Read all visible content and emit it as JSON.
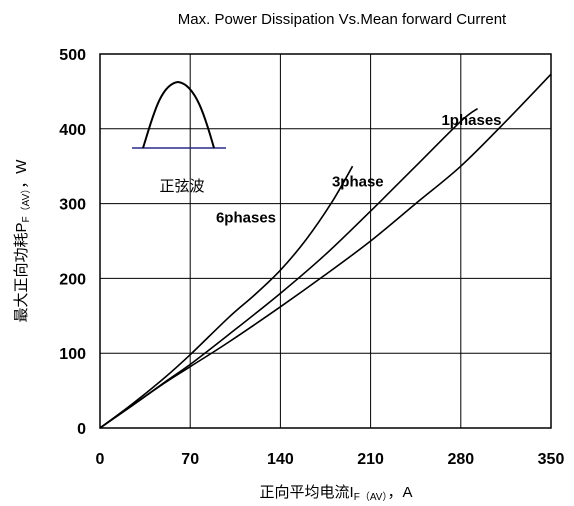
{
  "chart_data": {
    "type": "line",
    "title": "Max. Power Dissipation Vs.Mean forward Current",
    "xlabel": "正向平均电流I",
    "xlabel_sub": "F（AV）",
    "xlabel_suffix": "，A",
    "ylabel": "最大正向功耗P",
    "ylabel_sub": "F（AV）",
    "ylabel_suffix": "，W",
    "xlim": [
      0,
      350
    ],
    "ylim": [
      0,
      500
    ],
    "xticks": [
      0,
      70,
      140,
      210,
      280,
      350
    ],
    "yticks": [
      0,
      100,
      200,
      300,
      400,
      500
    ],
    "grid": true,
    "series": [
      {
        "name": "1phases",
        "x": [
          0,
          25,
          50,
          70,
          100,
          140,
          175,
          210,
          245,
          280,
          315,
          350
        ],
        "y": [
          0,
          30,
          60,
          82,
          115,
          162,
          205,
          250,
          300,
          350,
          410,
          473
        ]
      },
      {
        "name": "3phase",
        "x": [
          0,
          25,
          50,
          70,
          100,
          140,
          175,
          210,
          245,
          280,
          293
        ],
        "y": [
          0,
          30,
          61,
          85,
          125,
          180,
          232,
          290,
          350,
          410,
          427
        ]
      },
      {
        "name": "6phases",
        "x": [
          0,
          25,
          50,
          70,
          100,
          120,
          140,
          160,
          180,
          196
        ],
        "y": [
          0,
          32,
          67,
          98,
          148,
          178,
          211,
          252,
          302,
          350
        ]
      }
    ],
    "annotations": [
      {
        "text": "1phases",
        "x": 265,
        "y": 405
      },
      {
        "text": "3phase",
        "x": 180,
        "y": 323
      },
      {
        "text": "6phases",
        "x": 90,
        "y": 275
      }
    ],
    "inset": {
      "label": "正弦波"
    }
  }
}
